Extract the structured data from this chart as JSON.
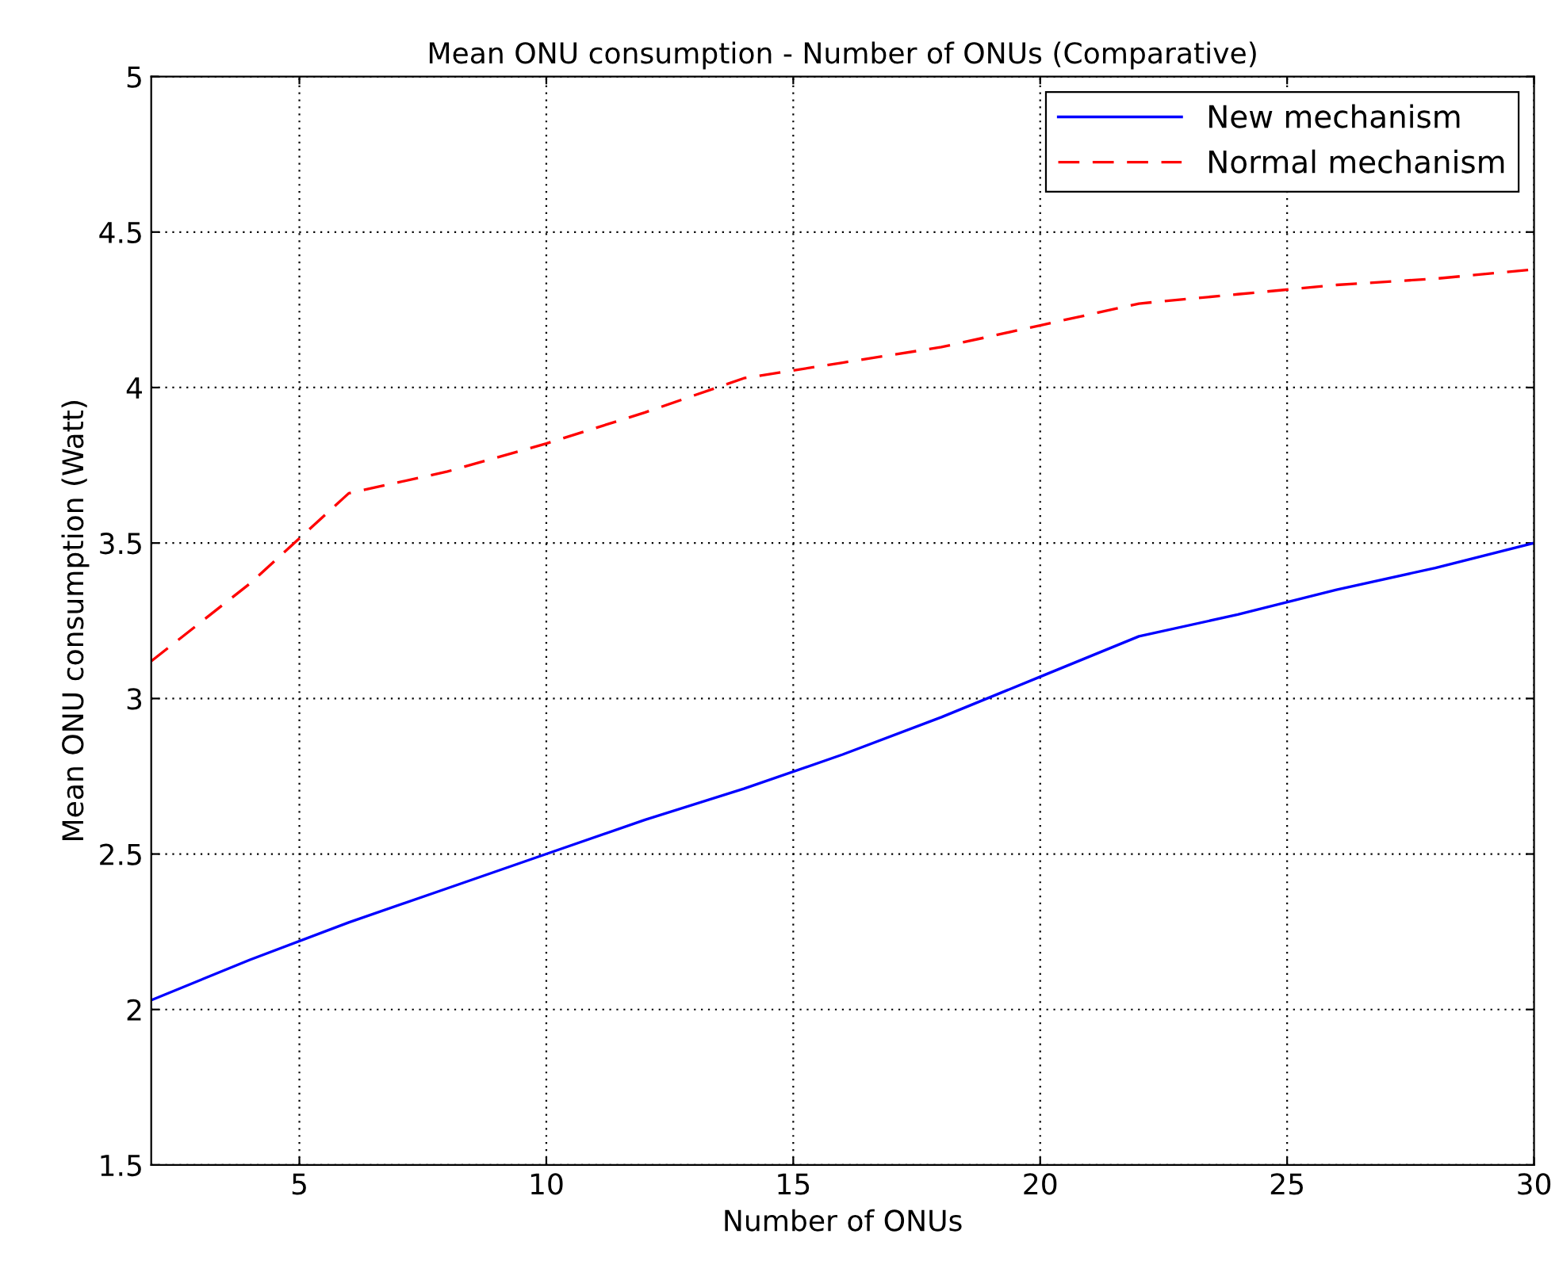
{
  "chart_data": {
    "type": "line",
    "title": "Mean ONU consumption - Number of ONUs (Comparative)",
    "xlabel": "Number of ONUs",
    "ylabel": "Mean ONU consumption (Watt)",
    "x": [
      2,
      4,
      6,
      8,
      10,
      12,
      14,
      16,
      18,
      20,
      22,
      24,
      26,
      28,
      30
    ],
    "series": [
      {
        "name": "New mechanism",
        "color": "#0000ff",
        "line_style": "solid",
        "values": [
          2.03,
          2.16,
          2.28,
          2.39,
          2.5,
          2.61,
          2.71,
          2.82,
          2.94,
          3.07,
          3.2,
          3.27,
          3.35,
          3.42,
          3.5
        ]
      },
      {
        "name": "Normal mechanism",
        "color": "#ff0000",
        "line_style": "dashed",
        "values": [
          3.12,
          3.37,
          3.66,
          3.73,
          3.82,
          3.92,
          4.03,
          4.08,
          4.13,
          4.2,
          4.27,
          4.3,
          4.33,
          4.35,
          4.38
        ]
      }
    ],
    "xlim": [
      2,
      30
    ],
    "xticks": [
      5,
      10,
      15,
      20,
      25,
      30
    ],
    "ylim": [
      1.5,
      5
    ],
    "yticks": [
      1.5,
      2,
      2.5,
      3,
      3.5,
      4,
      4.5,
      5
    ],
    "grid": true,
    "legend": "top right",
    "marker": "none"
  }
}
